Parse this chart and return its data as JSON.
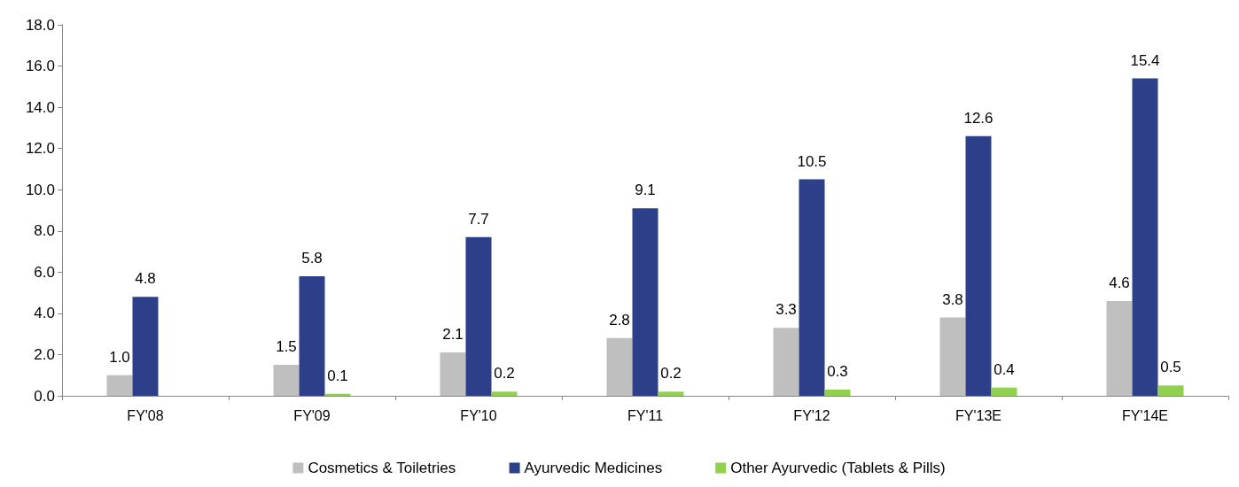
{
  "chart_data": {
    "type": "bar",
    "categories": [
      "FY'08",
      "FY'09",
      "FY'10",
      "FY'11",
      "FY'12",
      "FY'13E",
      "FY'14E"
    ],
    "series": [
      {
        "name": "Cosmetics & Toiletries",
        "color": "#bfbfbf",
        "values": [
          1.0,
          1.5,
          2.1,
          2.8,
          3.3,
          3.8,
          4.6
        ],
        "value_labels": [
          "1.0",
          "1.5",
          "2.1",
          "2.8",
          "3.3",
          "3.8",
          "4.6"
        ]
      },
      {
        "name": "Ayurvedic Medicines",
        "color": "#2e3f8a",
        "values": [
          4.8,
          5.8,
          7.7,
          9.1,
          10.5,
          12.6,
          15.4
        ],
        "value_labels": [
          "4.8",
          "5.8",
          "7.7",
          "9.1",
          "10.5",
          "12.6",
          "15.4"
        ]
      },
      {
        "name": "Other Ayurvedic (Tablets & Pills)",
        "color": "#92d050",
        "values": [
          null,
          0.1,
          0.2,
          0.2,
          0.3,
          0.4,
          0.5
        ],
        "value_labels": [
          null,
          "0.1",
          "0.2",
          "0.2",
          "0.3",
          "0.4",
          "0.5"
        ]
      }
    ],
    "ylim": [
      0,
      18
    ],
    "yticks": [
      {
        "value": 0,
        "label": "0.0"
      },
      {
        "value": 2,
        "label": "2.0"
      },
      {
        "value": 4,
        "label": "4.0"
      },
      {
        "value": 6,
        "label": "6.0"
      },
      {
        "value": 8,
        "label": "8.0"
      },
      {
        "value": 10,
        "label": "10.0"
      },
      {
        "value": 12,
        "label": "12.0"
      },
      {
        "value": 14,
        "label": "14.0"
      },
      {
        "value": 16,
        "label": "16.0"
      },
      {
        "value": 18,
        "label": "18.0"
      }
    ],
    "grid": false,
    "legend": "bottom"
  }
}
